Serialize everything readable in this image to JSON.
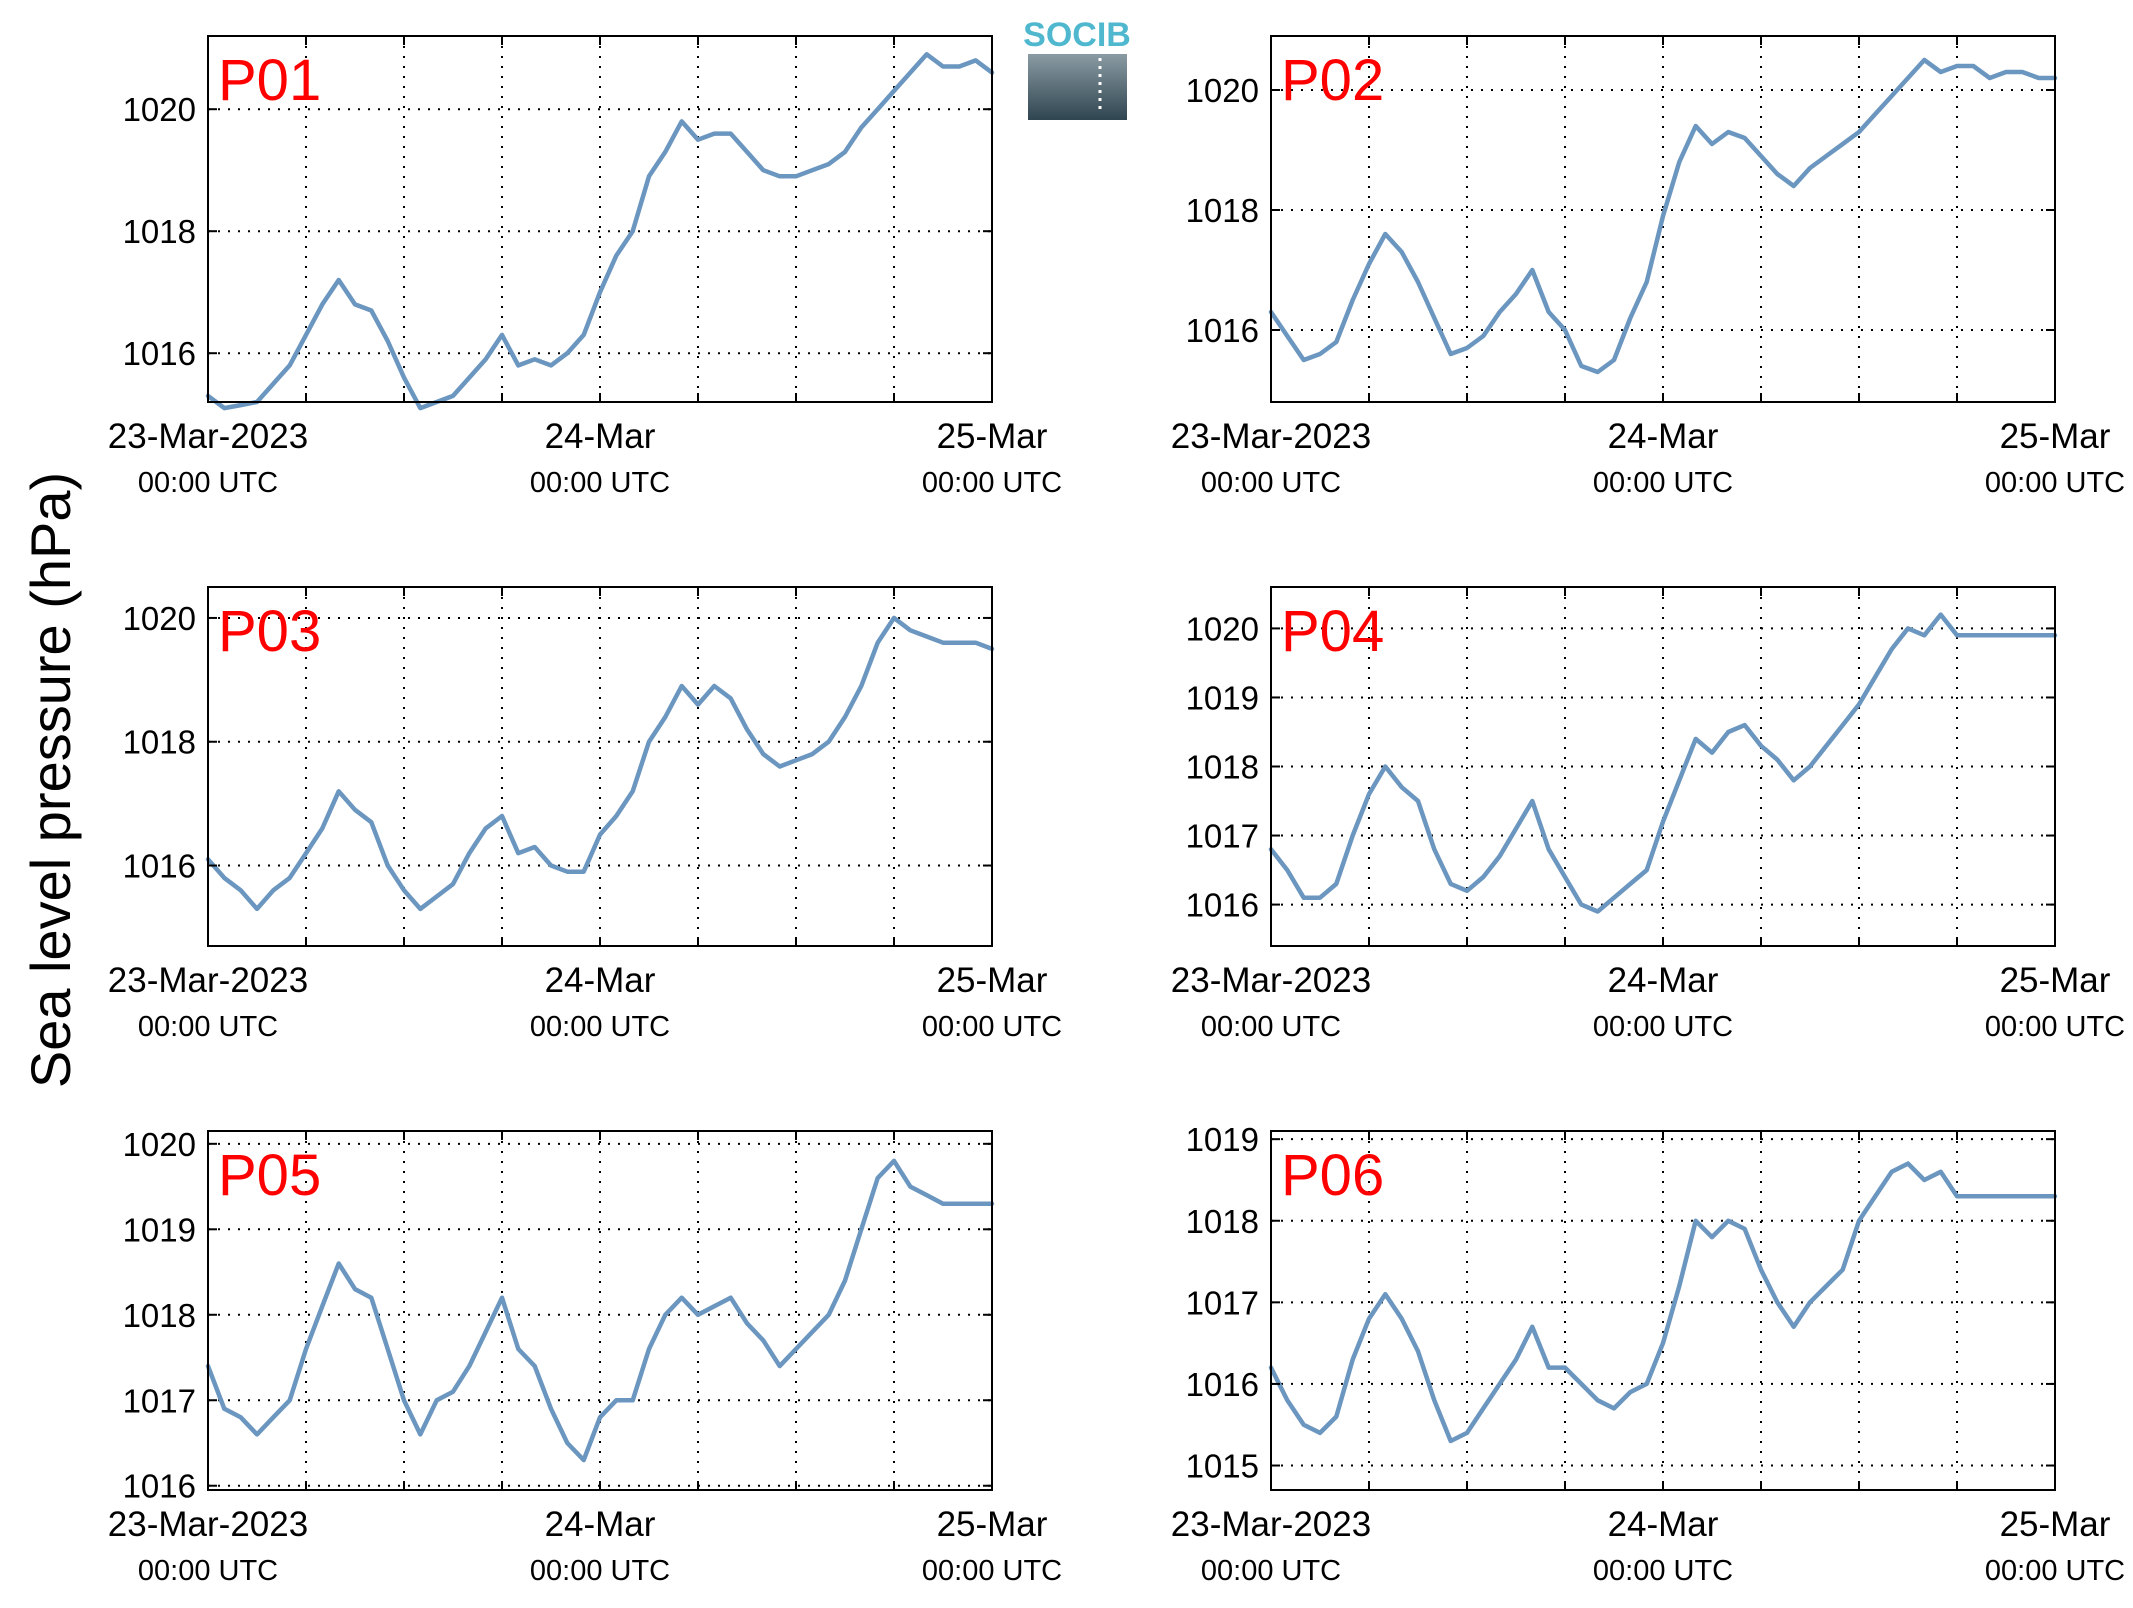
{
  "ylabel": "Sea level pressure (hPa)",
  "logo": {
    "text": "SOCIB",
    "colors": {
      "text": "#4fb8cf",
      "box_top": "#8a9ba3",
      "box_bottom": "#2f4550"
    }
  },
  "colors": {
    "line": "#6b96bf",
    "panel_label": "#ff0000",
    "axis": "#000000",
    "grid": "#000000"
  },
  "xticks": [
    {
      "value": 0,
      "line1": "23-Mar-2023",
      "line2": "00:00 UTC"
    },
    {
      "value": 1,
      "line1": "24-Mar",
      "line2": "00:00 UTC"
    },
    {
      "value": 2,
      "line1": "25-Mar",
      "line2": "00:00 UTC"
    }
  ],
  "chart_data": [
    {
      "type": "line",
      "label": "P01",
      "xlim": [
        "2023-03-23 00:00",
        "2023-03-25 00:00"
      ],
      "ylim": [
        1015.2,
        1021.2
      ],
      "yticks": [
        1016,
        1018,
        1020
      ],
      "grid": true,
      "x_hours": [
        0,
        1,
        2,
        3,
        4,
        5,
        6,
        7,
        8,
        9,
        10,
        11,
        12,
        13,
        14,
        15,
        16,
        17,
        18,
        19,
        20,
        21,
        22,
        23,
        24,
        25,
        26,
        27,
        28,
        29,
        30,
        31,
        32,
        33,
        34,
        35,
        36,
        37,
        38,
        39,
        40,
        41,
        42,
        43,
        44,
        45,
        46,
        47,
        48
      ],
      "values": [
        1015.3,
        1015.1,
        1015.15,
        1015.2,
        1015.5,
        1015.8,
        1016.3,
        1016.8,
        1017.2,
        1016.8,
        1016.7,
        1016.2,
        1015.6,
        1015.1,
        1015.2,
        1015.3,
        1015.6,
        1015.9,
        1016.3,
        1015.8,
        1015.9,
        1015.8,
        1016.0,
        1016.3,
        1017.0,
        1017.6,
        1018.0,
        1018.9,
        1019.3,
        1019.8,
        1019.5,
        1019.6,
        1019.6,
        1019.3,
        1019.0,
        1018.9,
        1018.9,
        1019.0,
        1019.1,
        1019.3,
        1019.7,
        1020.0,
        1020.3,
        1020.6,
        1020.9,
        1020.7,
        1020.7,
        1020.8,
        1020.6
      ]
    },
    {
      "type": "line",
      "label": "P02",
      "xlim": [
        "2023-03-23 00:00",
        "2023-03-25 00:00"
      ],
      "ylim": [
        1014.8,
        1020.9
      ],
      "yticks": [
        1016,
        1018,
        1020
      ],
      "grid": true,
      "x_hours": [
        0,
        1,
        2,
        3,
        4,
        5,
        6,
        7,
        8,
        9,
        10,
        11,
        12,
        13,
        14,
        15,
        16,
        17,
        18,
        19,
        20,
        21,
        22,
        23,
        24,
        25,
        26,
        27,
        28,
        29,
        30,
        31,
        32,
        33,
        34,
        35,
        36,
        37,
        38,
        39,
        40,
        41,
        42,
        43,
        44,
        45,
        46,
        47,
        48
      ],
      "values": [
        1016.3,
        1015.9,
        1015.5,
        1015.6,
        1015.8,
        1016.5,
        1017.1,
        1017.6,
        1017.3,
        1016.8,
        1016.2,
        1015.6,
        1015.7,
        1015.9,
        1016.3,
        1016.6,
        1017.0,
        1016.3,
        1016.0,
        1015.4,
        1015.3,
        1015.5,
        1016.2,
        1016.8,
        1017.9,
        1018.8,
        1019.4,
        1019.1,
        1019.3,
        1019.2,
        1018.9,
        1018.6,
        1018.4,
        1018.7,
        1018.9,
        1019.1,
        1019.3,
        1019.6,
        1019.9,
        1020.2,
        1020.5,
        1020.3,
        1020.4,
        1020.4,
        1020.2,
        1020.3,
        1020.3,
        1020.2,
        1020.2
      ]
    },
    {
      "type": "line",
      "label": "P03",
      "xlim": [
        "2023-03-23 00:00",
        "2023-03-25 00:00"
      ],
      "ylim": [
        1014.7,
        1020.5
      ],
      "yticks": [
        1016,
        1018,
        1020
      ],
      "grid": true,
      "x_hours": [
        0,
        1,
        2,
        3,
        4,
        5,
        6,
        7,
        8,
        9,
        10,
        11,
        12,
        13,
        14,
        15,
        16,
        17,
        18,
        19,
        20,
        21,
        22,
        23,
        24,
        25,
        26,
        27,
        28,
        29,
        30,
        31,
        32,
        33,
        34,
        35,
        36,
        37,
        38,
        39,
        40,
        41,
        42,
        43,
        44,
        45,
        46,
        47,
        48
      ],
      "values": [
        1016.1,
        1015.8,
        1015.6,
        1015.3,
        1015.6,
        1015.8,
        1016.2,
        1016.6,
        1017.2,
        1016.9,
        1016.7,
        1016.0,
        1015.6,
        1015.3,
        1015.5,
        1015.7,
        1016.2,
        1016.6,
        1016.8,
        1016.2,
        1016.3,
        1016.0,
        1015.9,
        1015.9,
        1016.5,
        1016.8,
        1017.2,
        1018.0,
        1018.4,
        1018.9,
        1018.6,
        1018.9,
        1018.7,
        1018.2,
        1017.8,
        1017.6,
        1017.7,
        1017.8,
        1018.0,
        1018.4,
        1018.9,
        1019.6,
        1020.0,
        1019.8,
        1019.7,
        1019.6,
        1019.6,
        1019.6,
        1019.5
      ]
    },
    {
      "type": "line",
      "label": "P04",
      "xlim": [
        "2023-03-23 00:00",
        "2023-03-25 00:00"
      ],
      "ylim": [
        1015.4,
        1020.6
      ],
      "yticks": [
        1016,
        1017,
        1018,
        1019,
        1020
      ],
      "grid": true,
      "x_hours": [
        0,
        1,
        2,
        3,
        4,
        5,
        6,
        7,
        8,
        9,
        10,
        11,
        12,
        13,
        14,
        15,
        16,
        17,
        18,
        19,
        20,
        21,
        22,
        23,
        24,
        25,
        26,
        27,
        28,
        29,
        30,
        31,
        32,
        33,
        34,
        35,
        36,
        37,
        38,
        39,
        40,
        41,
        42,
        43,
        44,
        45,
        46,
        47,
        48
      ],
      "values": [
        1016.8,
        1016.5,
        1016.1,
        1016.1,
        1016.3,
        1017.0,
        1017.6,
        1018.0,
        1017.7,
        1017.5,
        1016.8,
        1016.3,
        1016.2,
        1016.4,
        1016.7,
        1017.1,
        1017.5,
        1016.8,
        1016.4,
        1016.0,
        1015.9,
        1016.1,
        1016.3,
        1016.5,
        1017.2,
        1017.8,
        1018.4,
        1018.2,
        1018.5,
        1018.6,
        1018.3,
        1018.1,
        1017.8,
        1018.0,
        1018.3,
        1018.6,
        1018.9,
        1019.3,
        1019.7,
        1020.0,
        1019.9,
        1020.2,
        1019.9,
        1019.9,
        1019.9,
        1019.9,
        1019.9,
        1019.9,
        1019.9
      ]
    },
    {
      "type": "line",
      "label": "P05",
      "xlim": [
        "2023-03-23 00:00",
        "2023-03-25 00:00"
      ],
      "ylim": [
        1015.95,
        1020.15
      ],
      "yticks": [
        1016,
        1017,
        1018,
        1019,
        1020
      ],
      "grid": true,
      "x_hours": [
        0,
        1,
        2,
        3,
        4,
        5,
        6,
        7,
        8,
        9,
        10,
        11,
        12,
        13,
        14,
        15,
        16,
        17,
        18,
        19,
        20,
        21,
        22,
        23,
        24,
        25,
        26,
        27,
        28,
        29,
        30,
        31,
        32,
        33,
        34,
        35,
        36,
        37,
        38,
        39,
        40,
        41,
        42,
        43,
        44,
        45,
        46,
        47,
        48
      ],
      "values": [
        1017.4,
        1016.9,
        1016.8,
        1016.6,
        1016.8,
        1017.0,
        1017.6,
        1018.1,
        1018.6,
        1018.3,
        1018.2,
        1017.6,
        1017.0,
        1016.6,
        1017.0,
        1017.1,
        1017.4,
        1017.8,
        1018.2,
        1017.6,
        1017.4,
        1016.9,
        1016.5,
        1016.3,
        1016.8,
        1017.0,
        1017.0,
        1017.6,
        1018.0,
        1018.2,
        1018.0,
        1018.1,
        1018.2,
        1017.9,
        1017.7,
        1017.4,
        1017.6,
        1017.8,
        1018.0,
        1018.4,
        1019.0,
        1019.6,
        1019.8,
        1019.5,
        1019.4,
        1019.3,
        1019.3,
        1019.3,
        1019.3
      ]
    },
    {
      "type": "line",
      "label": "P06",
      "xlim": [
        "2023-03-23 00:00",
        "2023-03-25 00:00"
      ],
      "ylim": [
        1014.7,
        1019.1
      ],
      "yticks": [
        1015,
        1016,
        1017,
        1018,
        1019
      ],
      "grid": true,
      "x_hours": [
        0,
        1,
        2,
        3,
        4,
        5,
        6,
        7,
        8,
        9,
        10,
        11,
        12,
        13,
        14,
        15,
        16,
        17,
        18,
        19,
        20,
        21,
        22,
        23,
        24,
        25,
        26,
        27,
        28,
        29,
        30,
        31,
        32,
        33,
        34,
        35,
        36,
        37,
        38,
        39,
        40,
        41,
        42,
        43,
        44,
        45,
        46,
        47,
        48
      ],
      "values": [
        1016.2,
        1015.8,
        1015.5,
        1015.4,
        1015.6,
        1016.3,
        1016.8,
        1017.1,
        1016.8,
        1016.4,
        1015.8,
        1015.3,
        1015.4,
        1015.7,
        1016.0,
        1016.3,
        1016.7,
        1016.2,
        1016.2,
        1016.0,
        1015.8,
        1015.7,
        1015.9,
        1016.0,
        1016.5,
        1017.2,
        1018.0,
        1017.8,
        1018.0,
        1017.9,
        1017.4,
        1017.0,
        1016.7,
        1017.0,
        1017.2,
        1017.4,
        1018.0,
        1018.3,
        1018.6,
        1018.7,
        1018.5,
        1018.6,
        1018.3,
        1018.3,
        1018.3,
        1018.3,
        1018.3,
        1018.3,
        1018.3
      ]
    }
  ]
}
